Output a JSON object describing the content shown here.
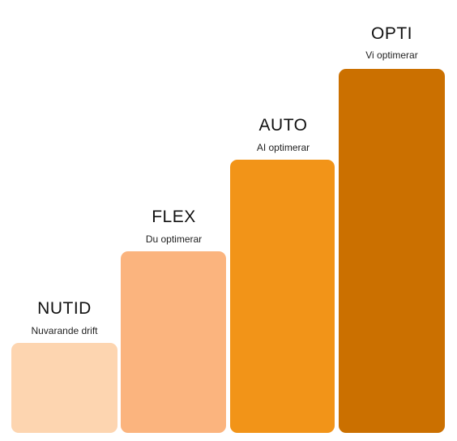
{
  "steps": [
    {
      "title": "NUTID",
      "subtitle": "Nuvarande drift"
    },
    {
      "title": "FLEX",
      "subtitle": "Du optimerar"
    },
    {
      "title": "AUTO",
      "subtitle": "AI optimerar"
    },
    {
      "title": "OPTI",
      "subtitle": "Vi optimerar"
    }
  ]
}
